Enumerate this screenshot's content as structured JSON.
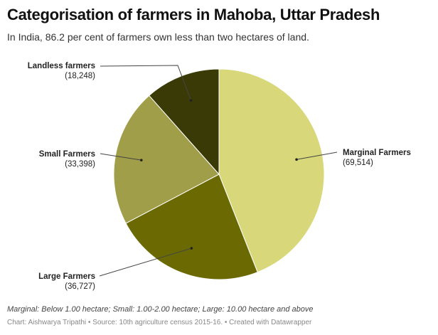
{
  "title": "Categorisation of farmers in Mahoba, Uttar Pradesh",
  "subtitle": "In India, 86.2 per cent of farmers own less than two hectares of land.",
  "note": "Marginal: Below 1.00 hectare; Small: 1.00-2.00 hectare; Large: 10.00 hectare and above",
  "source": "Chart: Aishwarya Tripathi • Source: 10th agriculture census 2015-16. • Created with Datawrapper",
  "chart_data": {
    "type": "pie",
    "start": "top, clockwise",
    "slices": [
      {
        "label": "Marginal Farmers",
        "value": 69514,
        "value_label": "(69,514)",
        "color": "#d8d77a"
      },
      {
        "label": "Large Farmers",
        "value": 36727,
        "value_label": "(36,727)",
        "color": "#6b6a02"
      },
      {
        "label": "Small Farmers",
        "value": 33398,
        "value_label": "(33,398)",
        "color": "#a09e48"
      },
      {
        "label": "Landless farmers",
        "value": 18248,
        "value_label": "(18,248)",
        "color": "#3a3a06"
      }
    ]
  }
}
